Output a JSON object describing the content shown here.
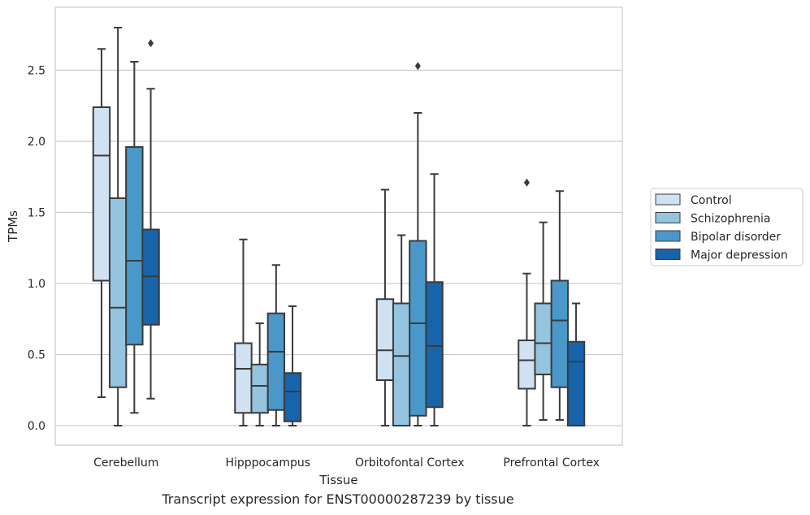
{
  "chart_data": {
    "type": "box",
    "xlabel": "Tissue",
    "ylabel": "TPMs",
    "caption": "Transcript expression for ENST00000287239 by tissue",
    "ylim": [
      -0.14,
      2.95
    ],
    "yticks": [
      "0.0",
      "0.5",
      "1.0",
      "1.5",
      "2.0",
      "2.5"
    ],
    "grid": "horizontal",
    "legend_position": "right",
    "categories": [
      "Cerebellum",
      "Hipppocampus",
      "Orbitofontal Cortex",
      "Prefrontal Cortex"
    ],
    "series": [
      {
        "name": "Control",
        "color": "#d0e1f2",
        "boxes": [
          {
            "whislo": 0.2,
            "q1": 1.02,
            "med": 1.9,
            "q3": 2.24,
            "whishi": 2.65,
            "fliers": []
          },
          {
            "whislo": 0.0,
            "q1": 0.09,
            "med": 0.4,
            "q3": 0.58,
            "whishi": 1.31,
            "fliers": []
          },
          {
            "whislo": 0.0,
            "q1": 0.32,
            "med": 0.53,
            "q3": 0.89,
            "whishi": 1.66,
            "fliers": []
          },
          {
            "whislo": 0.0,
            "q1": 0.26,
            "med": 0.46,
            "q3": 0.6,
            "whishi": 1.07,
            "fliers": [
              1.71
            ]
          }
        ]
      },
      {
        "name": "Schizophrenia",
        "color": "#94c4df",
        "boxes": [
          {
            "whislo": 0.0,
            "q1": 0.27,
            "med": 0.83,
            "q3": 1.6,
            "whishi": 2.8,
            "fliers": []
          },
          {
            "whislo": 0.0,
            "q1": 0.09,
            "med": 0.28,
            "q3": 0.43,
            "whishi": 0.72,
            "fliers": []
          },
          {
            "whislo": 0.0,
            "q1": 0.0,
            "med": 0.49,
            "q3": 0.86,
            "whishi": 1.34,
            "fliers": []
          },
          {
            "whislo": 0.04,
            "q1": 0.36,
            "med": 0.58,
            "q3": 0.86,
            "whishi": 1.43,
            "fliers": []
          }
        ]
      },
      {
        "name": "Bipolar disorder",
        "color": "#4a98c9",
        "boxes": [
          {
            "whislo": 0.09,
            "q1": 0.57,
            "med": 1.16,
            "q3": 1.96,
            "whishi": 2.56,
            "fliers": []
          },
          {
            "whislo": 0.0,
            "q1": 0.11,
            "med": 0.52,
            "q3": 0.79,
            "whishi": 1.13,
            "fliers": []
          },
          {
            "whislo": 0.0,
            "q1": 0.07,
            "med": 0.72,
            "q3": 1.3,
            "whishi": 2.2,
            "fliers": [
              2.53
            ]
          },
          {
            "whislo": 0.04,
            "q1": 0.27,
            "med": 0.74,
            "q3": 1.02,
            "whishi": 1.65,
            "fliers": []
          }
        ]
      },
      {
        "name": "Major depression",
        "color": "#1764ab",
        "boxes": [
          {
            "whislo": 0.19,
            "q1": 0.71,
            "med": 1.05,
            "q3": 1.38,
            "whishi": 2.37,
            "fliers": [
              2.69
            ]
          },
          {
            "whislo": 0.0,
            "q1": 0.03,
            "med": 0.24,
            "q3": 0.37,
            "whishi": 0.84,
            "fliers": []
          },
          {
            "whislo": 0.0,
            "q1": 0.13,
            "med": 0.56,
            "q3": 1.01,
            "whishi": 1.77,
            "fliers": []
          },
          {
            "whislo": 0.0,
            "q1": 0.0,
            "med": 0.45,
            "q3": 0.59,
            "whishi": 0.86,
            "fliers": []
          }
        ]
      }
    ]
  }
}
